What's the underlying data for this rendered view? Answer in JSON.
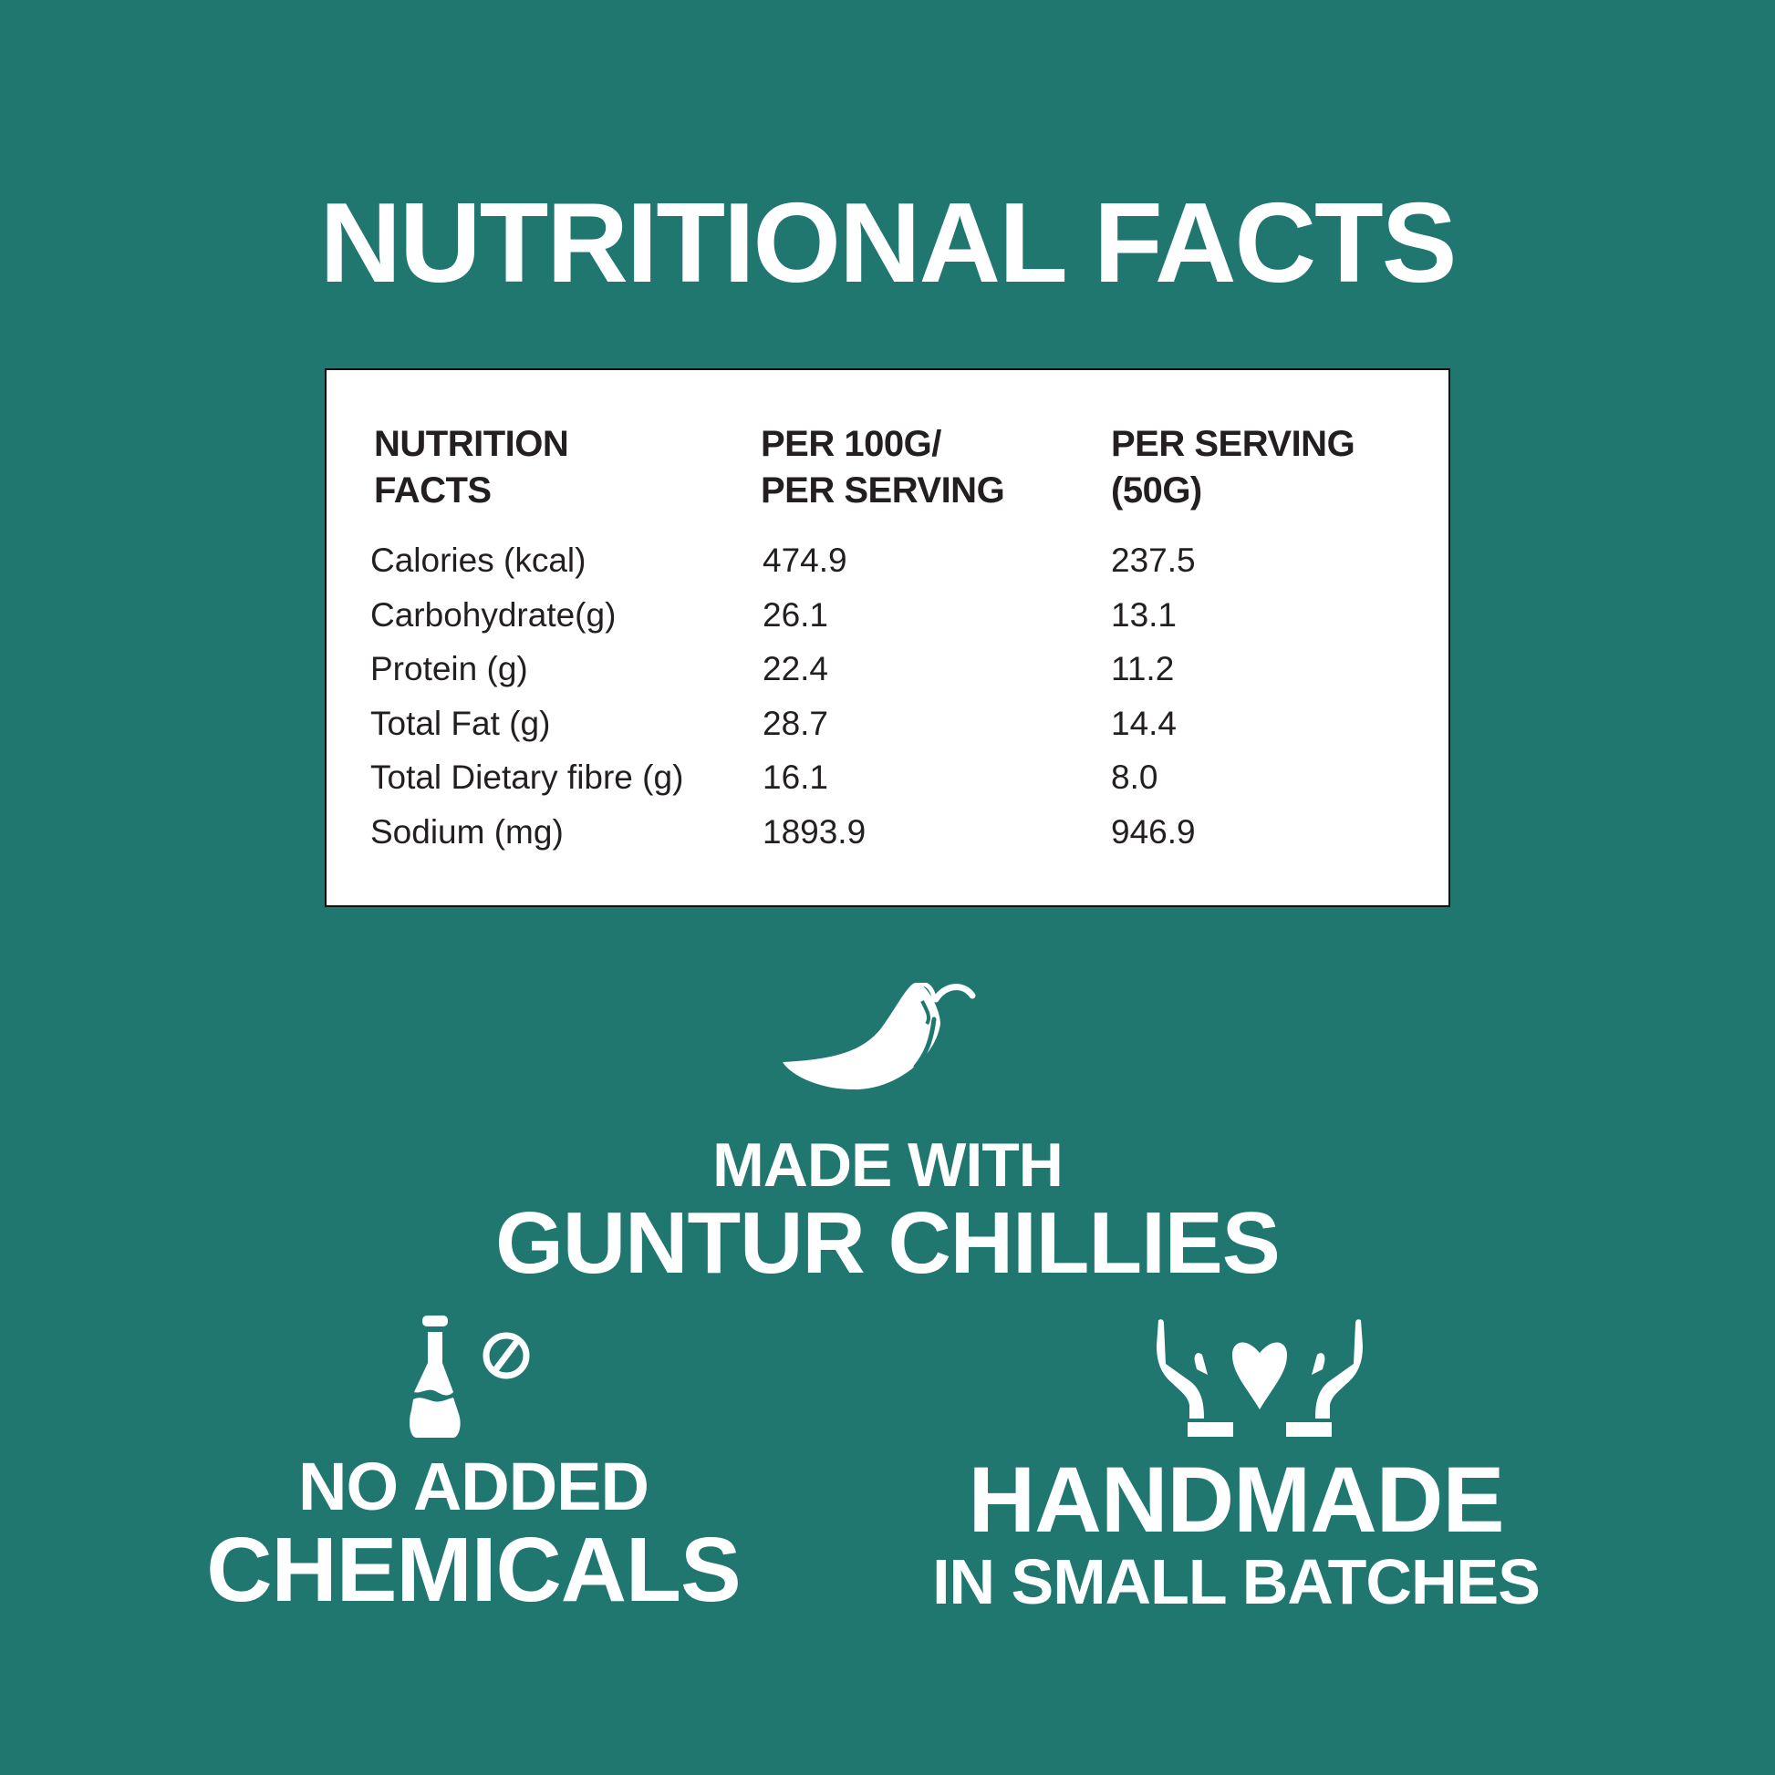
{
  "title": "NUTRITIONAL FACTS",
  "colors": {
    "background": "#1f7770",
    "table_background": "#ffffff",
    "text": "#ffffff",
    "table_text": "#231f20"
  },
  "table": {
    "headers": [
      [
        "NUTRITION",
        "FACTS"
      ],
      [
        "PER 100G/",
        "PER SERVING"
      ],
      [
        "PER SERVING",
        "(50G)"
      ]
    ],
    "rows": [
      [
        "Calories (kcal)",
        "474.9",
        "237.5"
      ],
      [
        "Carbohydrate(g)",
        "26.1",
        "13.1"
      ],
      [
        "Protein (g)",
        "22.4",
        "11.2"
      ],
      [
        "Total Fat (g)",
        "28.7",
        "14.4"
      ],
      [
        "Total Dietary fibre (g)",
        "16.1",
        "8.0"
      ],
      [
        "Sodium (mg)",
        "1893.9",
        "946.9"
      ]
    ]
  },
  "features": {
    "chilli": {
      "icon": "chilli-icon",
      "line1": "MADE WITH",
      "line2": "GUNTUR CHILLIES"
    },
    "chemicals": {
      "icon": "no-chemicals-flask-icon",
      "line1": "NO ADDED",
      "line2": "CHEMICALS"
    },
    "handmade": {
      "icon": "hands-heart-icon",
      "line1": "HANDMADE",
      "line2": "IN SMALL BATCHES"
    }
  }
}
